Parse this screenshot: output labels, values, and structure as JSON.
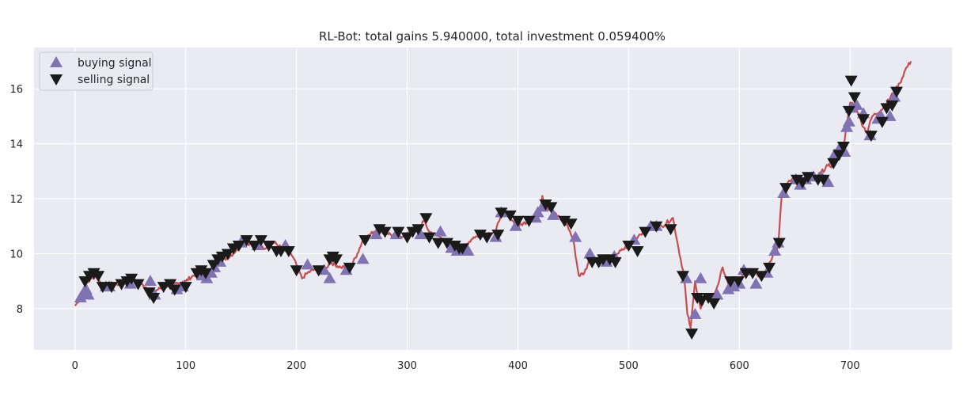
{
  "chart_data": {
    "type": "line",
    "title": "RL-Bot: total gains 5.940000, total investment 0.059400%",
    "xlabel": "",
    "ylabel": "",
    "xlim": [
      -37,
      792
    ],
    "ylim": [
      6.5,
      17.5
    ],
    "x_ticks": [
      0,
      100,
      200,
      300,
      400,
      500,
      600,
      700
    ],
    "y_ticks": [
      8,
      10,
      12,
      14,
      16
    ],
    "grid": true,
    "legend_position": "top-left",
    "colors": {
      "line": "#c44e52",
      "buy": "#8172b2",
      "sell": "#1a1a1a",
      "plot_bg": "#eaeaf2",
      "grid": "#ffffff"
    },
    "price_keypoints": [
      [
        0,
        8.1
      ],
      [
        5,
        8.4
      ],
      [
        10,
        8.9
      ],
      [
        15,
        9.1
      ],
      [
        20,
        9.2
      ],
      [
        25,
        8.8
      ],
      [
        30,
        8.9
      ],
      [
        40,
        8.9
      ],
      [
        50,
        9.1
      ],
      [
        60,
        8.9
      ],
      [
        70,
        8.6
      ],
      [
        80,
        8.8
      ],
      [
        90,
        8.9
      ],
      [
        100,
        9.0
      ],
      [
        110,
        9.3
      ],
      [
        120,
        9.2
      ],
      [
        130,
        9.7
      ],
      [
        140,
        9.9
      ],
      [
        150,
        10.3
      ],
      [
        160,
        10.4
      ],
      [
        170,
        10.2
      ],
      [
        180,
        10.4
      ],
      [
        190,
        10.1
      ],
      [
        195,
        10.0
      ],
      [
        200,
        9.6
      ],
      [
        205,
        9.1
      ],
      [
        210,
        9.3
      ],
      [
        220,
        9.5
      ],
      [
        225,
        9.3
      ],
      [
        230,
        9.7
      ],
      [
        240,
        9.5
      ],
      [
        250,
        9.6
      ],
      [
        255,
        10.0
      ],
      [
        260,
        10.5
      ],
      [
        270,
        10.8
      ],
      [
        280,
        10.8
      ],
      [
        290,
        10.6
      ],
      [
        300,
        10.7
      ],
      [
        310,
        10.9
      ],
      [
        315,
        11.2
      ],
      [
        320,
        10.8
      ],
      [
        330,
        10.6
      ],
      [
        340,
        10.2
      ],
      [
        350,
        10.2
      ],
      [
        360,
        10.6
      ],
      [
        370,
        10.7
      ],
      [
        380,
        10.8
      ],
      [
        385,
        11.5
      ],
      [
        390,
        11.5
      ],
      [
        395,
        11.2
      ],
      [
        400,
        11.0
      ],
      [
        410,
        11.2
      ],
      [
        415,
        11.3
      ],
      [
        420,
        11.5
      ],
      [
        422,
        12.1
      ],
      [
        425,
        11.7
      ],
      [
        430,
        11.6
      ],
      [
        440,
        11.2
      ],
      [
        445,
        11.0
      ],
      [
        450,
        10.5
      ],
      [
        455,
        9.2
      ],
      [
        460,
        9.3
      ],
      [
        465,
        9.8
      ],
      [
        475,
        9.8
      ],
      [
        480,
        9.7
      ],
      [
        490,
        10.0
      ],
      [
        500,
        10.3
      ],
      [
        510,
        10.7
      ],
      [
        520,
        11.0
      ],
      [
        530,
        11.0
      ],
      [
        540,
        11.3
      ],
      [
        545,
        10.2
      ],
      [
        550,
        9.2
      ],
      [
        553,
        7.8
      ],
      [
        556,
        7.3
      ],
      [
        560,
        9.0
      ],
      [
        565,
        8.0
      ],
      [
        570,
        8.4
      ],
      [
        575,
        8.3
      ],
      [
        580,
        8.8
      ],
      [
        585,
        9.5
      ],
      [
        590,
        8.9
      ],
      [
        595,
        9.0
      ],
      [
        600,
        9.0
      ],
      [
        605,
        9.3
      ],
      [
        615,
        9.3
      ],
      [
        620,
        9.1
      ],
      [
        625,
        9.5
      ],
      [
        630,
        9.9
      ],
      [
        635,
        10.3
      ],
      [
        638,
        12.0
      ],
      [
        640,
        12.4
      ],
      [
        650,
        12.8
      ],
      [
        660,
        12.7
      ],
      [
        670,
        12.8
      ],
      [
        680,
        13.2
      ],
      [
        685,
        13.2
      ],
      [
        690,
        13.7
      ],
      [
        695,
        14.1
      ],
      [
        700,
        15.5
      ],
      [
        705,
        15.4
      ],
      [
        710,
        14.8
      ],
      [
        715,
        14.4
      ],
      [
        720,
        15.0
      ],
      [
        730,
        15.3
      ],
      [
        740,
        15.9
      ],
      [
        745,
        16.2
      ],
      [
        750,
        16.7
      ],
      [
        755,
        17.0
      ]
    ],
    "buy_x": [
      5,
      8,
      10,
      12,
      28,
      31,
      50,
      68,
      72,
      92,
      97,
      115,
      119,
      123,
      126,
      131,
      150,
      165,
      190,
      210,
      225,
      230,
      245,
      260,
      272,
      290,
      312,
      330,
      340,
      345,
      355,
      380,
      385,
      398,
      416,
      418,
      422,
      432,
      452,
      465,
      480,
      487,
      505,
      520,
      525,
      552,
      560,
      565,
      580,
      590,
      595,
      600,
      604,
      615,
      625,
      632,
      635,
      640,
      651,
      655,
      660,
      667,
      674,
      680,
      686,
      690,
      695,
      697,
      699,
      701,
      706,
      712,
      718,
      725,
      728,
      736,
      740
    ],
    "buy_y": [
      8.4,
      8.6,
      8.7,
      8.5,
      8.8,
      8.8,
      8.9,
      9.0,
      8.5,
      8.7,
      8.8,
      9.2,
      9.1,
      9.3,
      9.5,
      9.7,
      10.4,
      10.3,
      10.3,
      9.6,
      9.4,
      9.1,
      9.4,
      9.8,
      10.7,
      10.7,
      10.7,
      10.8,
      10.2,
      10.1,
      10.1,
      10.6,
      11.5,
      11.0,
      11.3,
      11.5,
      11.7,
      11.4,
      10.6,
      10.0,
      9.7,
      9.9,
      10.5,
      11.0,
      11.0,
      9.1,
      7.8,
      9.1,
      8.5,
      8.7,
      8.8,
      8.9,
      9.4,
      8.9,
      9.3,
      10.1,
      10.4,
      12.2,
      12.7,
      12.5,
      12.7,
      12.8,
      12.8,
      12.6,
      13.6,
      13.8,
      13.7,
      14.6,
      14.8,
      15.3,
      15.4,
      15.1,
      14.3,
      14.9,
      15.0,
      15.0,
      15.7
    ],
    "sell_x": [
      9,
      13,
      17,
      21,
      25,
      33,
      42,
      47,
      51,
      57,
      67,
      71,
      80,
      86,
      90,
      100,
      110,
      114,
      118,
      125,
      129,
      133,
      138,
      143,
      148,
      155,
      162,
      168,
      175,
      182,
      186,
      193,
      200,
      220,
      230,
      233,
      236,
      248,
      262,
      275,
      280,
      292,
      300,
      305,
      310,
      317,
      320,
      328,
      336,
      343,
      347,
      350,
      366,
      372,
      382,
      385,
      393,
      400,
      410,
      425,
      430,
      442,
      448,
      467,
      473,
      477,
      483,
      488,
      500,
      508,
      515,
      525,
      538,
      549,
      557,
      562,
      566,
      572,
      577,
      592,
      599,
      606,
      612,
      620,
      627,
      636,
      642,
      652,
      657,
      662,
      671,
      676,
      685,
      690,
      694,
      699,
      701,
      704,
      712,
      719,
      729,
      733,
      738,
      742
    ],
    "sell_y": [
      9.0,
      9.2,
      9.3,
      9.2,
      8.8,
      8.8,
      8.9,
      9.0,
      9.1,
      8.9,
      8.6,
      8.4,
      8.8,
      8.9,
      8.7,
      8.8,
      9.3,
      9.4,
      9.3,
      9.6,
      9.8,
      9.9,
      10.0,
      10.2,
      10.3,
      10.5,
      10.3,
      10.5,
      10.3,
      10.1,
      10.1,
      10.1,
      9.4,
      9.4,
      9.8,
      9.9,
      9.8,
      9.5,
      10.5,
      10.9,
      10.8,
      10.8,
      10.6,
      10.8,
      10.9,
      11.3,
      10.6,
      10.4,
      10.4,
      10.3,
      10.2,
      10.2,
      10.7,
      10.6,
      10.7,
      11.5,
      11.4,
      11.2,
      11.2,
      11.8,
      11.7,
      11.2,
      11.1,
      9.7,
      9.7,
      9.8,
      9.8,
      9.7,
      10.3,
      10.1,
      10.8,
      11.0,
      10.9,
      9.2,
      7.1,
      8.4,
      8.3,
      8.4,
      8.2,
      9.0,
      9.0,
      9.3,
      9.3,
      9.2,
      9.5,
      10.4,
      12.4,
      12.7,
      12.6,
      12.8,
      12.7,
      12.7,
      13.3,
      13.6,
      13.9,
      15.2,
      16.3,
      15.7,
      14.9,
      14.3,
      14.8,
      15.3,
      15.4,
      15.9
    ],
    "legend": [
      {
        "label": "buying signal",
        "marker": "triangle-up"
      },
      {
        "label": "selling signal",
        "marker": "triangle-down"
      }
    ]
  }
}
